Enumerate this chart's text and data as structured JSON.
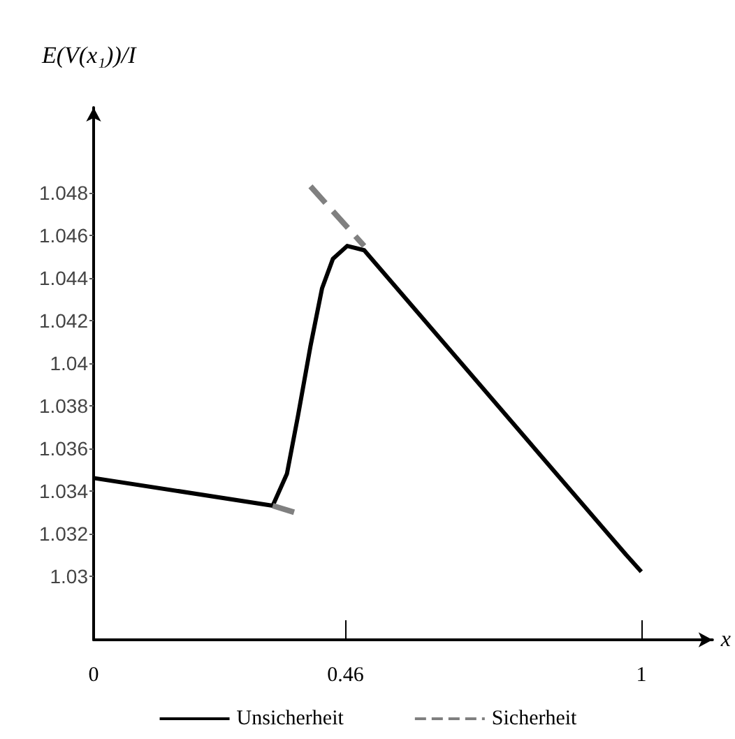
{
  "chart_data": {
    "type": "line",
    "ylabel": "E(V(x₁))/I",
    "xlabel": "x",
    "xlim": [
      0,
      1.13
    ],
    "xticks": [
      0,
      0.46,
      1
    ],
    "ylim": [
      1.027,
      1.052
    ],
    "yticks": [
      1.03,
      1.032,
      1.034,
      1.036,
      1.038,
      1.04,
      1.042,
      1.044,
      1.046,
      1.048
    ],
    "grid": false,
    "legend": "bottom",
    "marker": "none",
    "series": [
      {
        "name": "Unsicherheit",
        "color": "#000000",
        "line_style": "solid",
        "x": [
          0,
          0.327,
          0.353,
          0.373,
          0.396,
          0.417,
          0.437,
          0.463,
          0.494,
          0.972,
          1
        ],
        "values": [
          1.0346,
          1.0333,
          1.0348,
          1.0375,
          1.0408,
          1.0435,
          1.0449,
          1.0455,
          1.0453,
          1.031,
          1.0302
        ]
      },
      {
        "name": "Sicherheit",
        "color": "#808080",
        "line_style": "dashed",
        "x": [
          0.327,
          0.378
        ],
        "values": [
          1.0333,
          1.0329
        ]
      },
      {
        "color": "#808080",
        "line_style": "dashed",
        "x": [
          0.396,
          0.494
        ],
        "values": [
          1.0483,
          1.0455
        ]
      }
    ]
  }
}
